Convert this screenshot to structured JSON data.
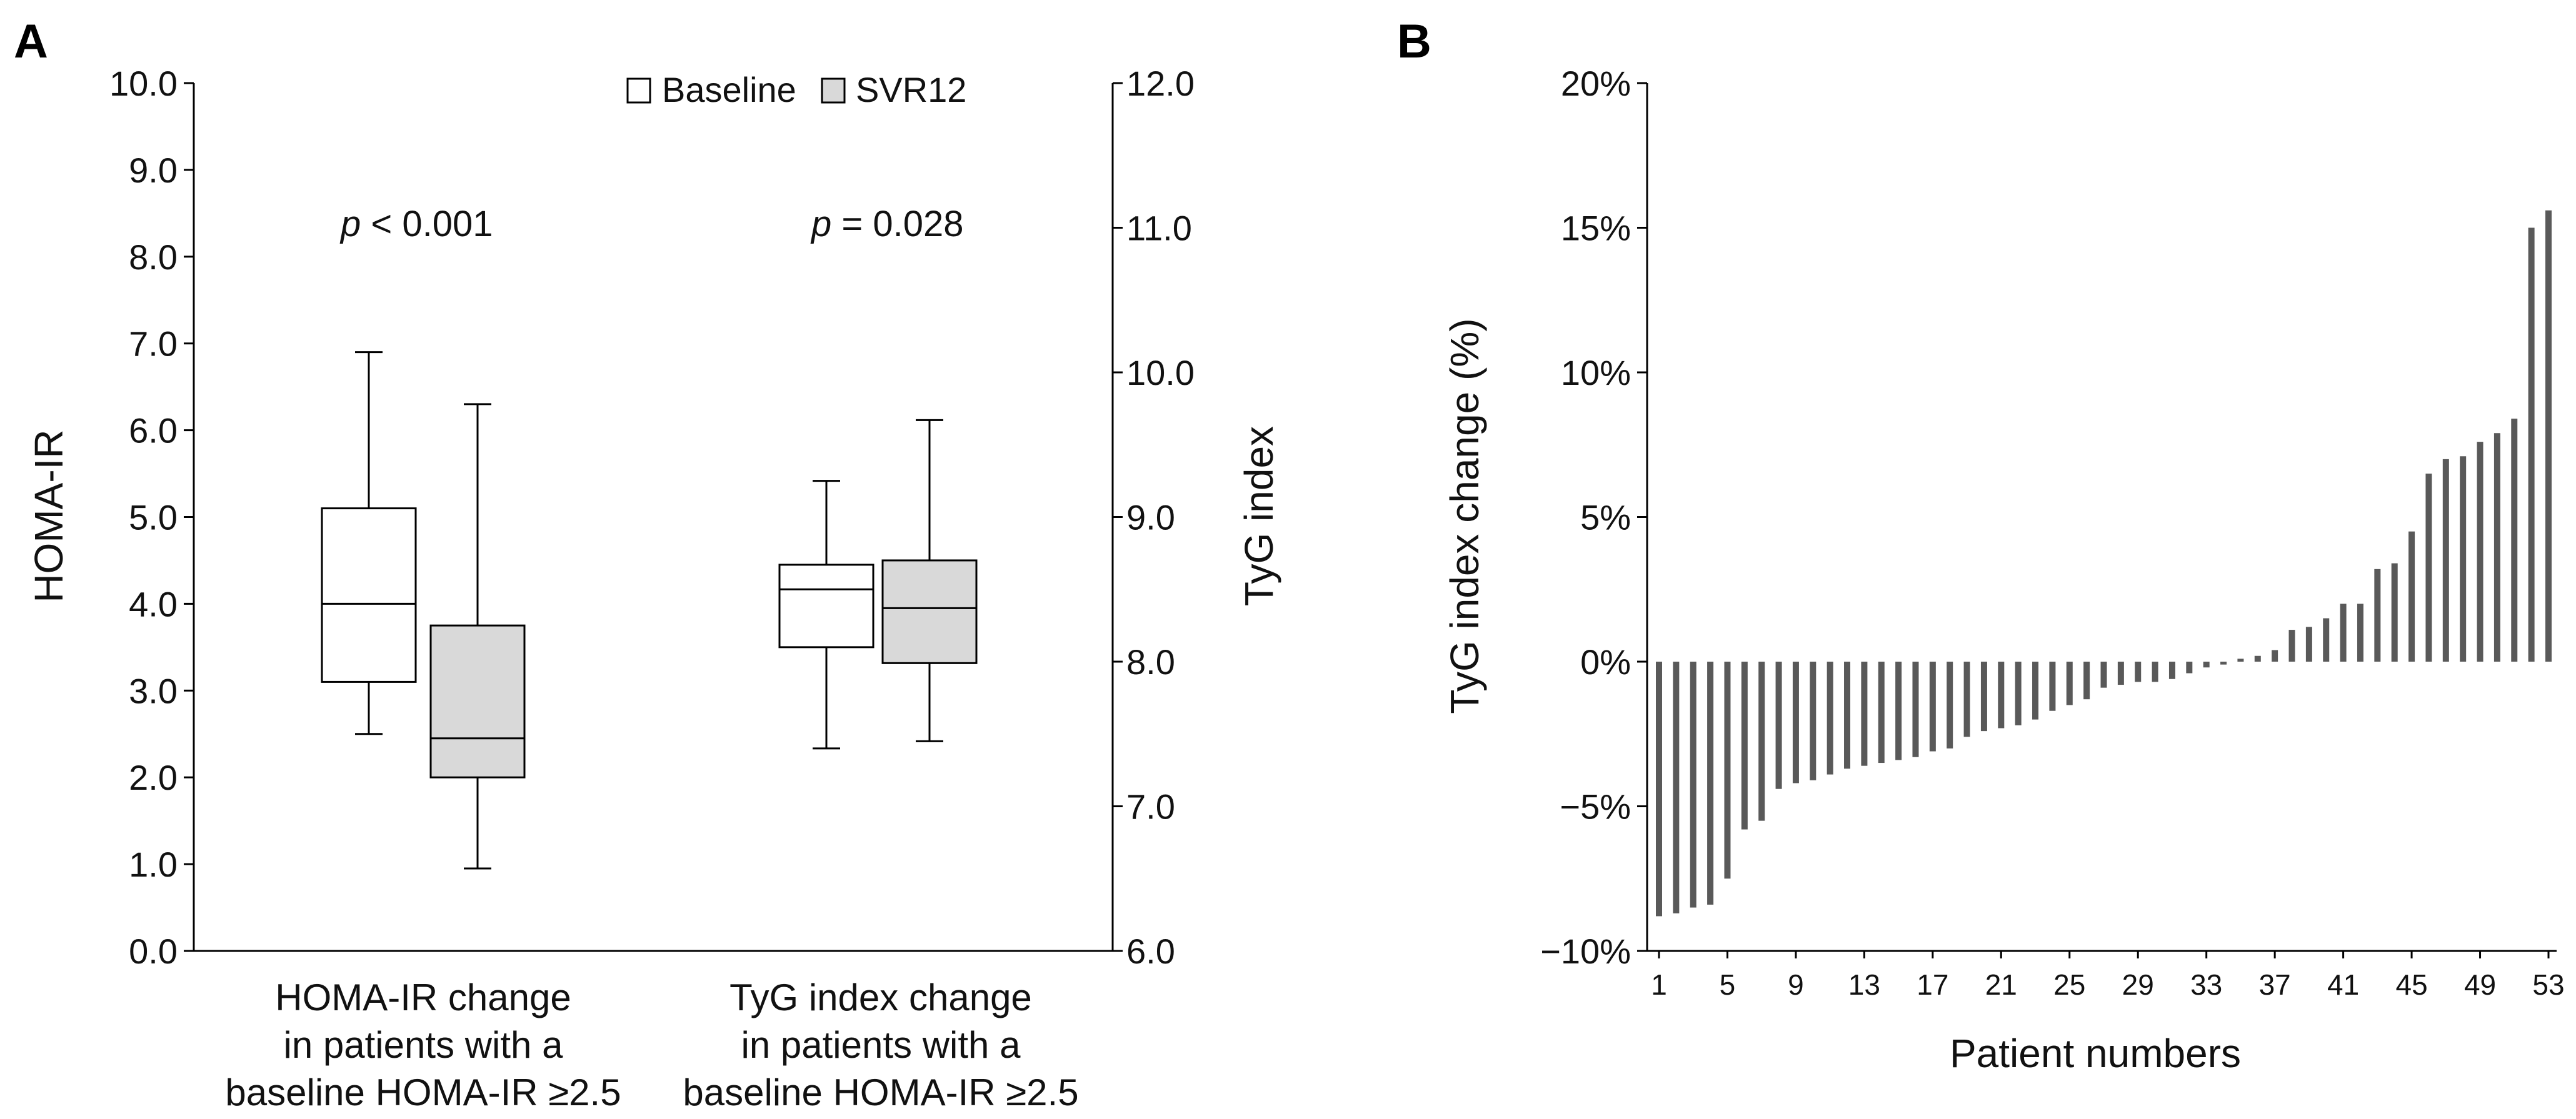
{
  "chart_data": [
    {
      "panel": "A",
      "type": "box",
      "y_left_label": "HOMA-IR",
      "y_right_label": "TyG index",
      "y_left_ticks": [
        "0.0",
        "1.0",
        "2.0",
        "3.0",
        "4.0",
        "5.0",
        "6.0",
        "7.0",
        "8.0",
        "9.0",
        "10.0"
      ],
      "y_right_ticks": [
        "6.0",
        "7.0",
        "8.0",
        "9.0",
        "10.0",
        "11.0",
        "12.0"
      ],
      "ylim_left": [
        0,
        10
      ],
      "ylim_right": [
        6,
        12
      ],
      "legend": [
        "Baseline",
        "SVR12"
      ],
      "groups": [
        {
          "label_lines": [
            "HOMA-IR change",
            "in patients with a",
            "baseline HOMA-IR ≥2.5"
          ],
          "p_symbol": "p",
          "p_rest": " < 0.001",
          "axis": "left",
          "boxes": [
            {
              "series": "Baseline",
              "min": 2.5,
              "q1": 3.1,
              "median": 4.0,
              "q3": 5.1,
              "max": 6.9
            },
            {
              "series": "SVR12",
              "min": 0.95,
              "q1": 2.0,
              "median": 2.45,
              "q3": 3.75,
              "max": 6.3
            }
          ]
        },
        {
          "label_lines": [
            "TyG index change",
            "in patients with a",
            "baseline HOMA-IR ≥2.5"
          ],
          "p_symbol": "p",
          "p_rest": " = 0.028",
          "axis": "right",
          "boxes": [
            {
              "series": "Baseline",
              "min": 7.4,
              "q1": 8.1,
              "median": 8.5,
              "q3": 8.67,
              "max": 9.25
            },
            {
              "series": "SVR12",
              "min": 7.45,
              "q1": 7.99,
              "median": 8.37,
              "q3": 8.7,
              "max": 9.67
            }
          ]
        }
      ]
    },
    {
      "panel": "B",
      "type": "bar",
      "xlabel": "Patient numbers",
      "ylabel": "TyG index change (%)",
      "ylim": [
        -10,
        20
      ],
      "y_ticks": [
        "−10%",
        "−5%",
        "0%",
        "5%",
        "10%",
        "15%",
        "20%"
      ],
      "x_ticks": [
        "1",
        "5",
        "9",
        "13",
        "17",
        "21",
        "25",
        "29",
        "33",
        "37",
        "41",
        "45",
        "49",
        "53"
      ],
      "categories": [
        1,
        2,
        3,
        4,
        5,
        6,
        7,
        8,
        9,
        10,
        11,
        12,
        13,
        14,
        15,
        16,
        17,
        18,
        19,
        20,
        21,
        22,
        23,
        24,
        25,
        26,
        27,
        28,
        29,
        30,
        31,
        32,
        33,
        34,
        35,
        36,
        37,
        38,
        39,
        40,
        41,
        42,
        43,
        44,
        45,
        46,
        47,
        48,
        49,
        50,
        51,
        52,
        53
      ],
      "values": [
        -8.8,
        -8.7,
        -8.5,
        -8.4,
        -7.5,
        -5.8,
        -5.5,
        -4.4,
        -4.2,
        -4.1,
        -3.9,
        -3.7,
        -3.6,
        -3.5,
        -3.4,
        -3.3,
        -3.1,
        -3.0,
        -2.6,
        -2.4,
        -2.3,
        -2.2,
        -2.0,
        -1.7,
        -1.5,
        -1.3,
        -0.9,
        -0.8,
        -0.7,
        -0.7,
        -0.6,
        -0.4,
        -0.2,
        -0.1,
        0.1,
        0.2,
        0.4,
        1.1,
        1.2,
        1.5,
        2.0,
        2.0,
        3.2,
        3.4,
        4.5,
        6.5,
        7.0,
        7.1,
        7.6,
        7.9,
        8.4,
        15.0,
        15.6
      ]
    }
  ]
}
